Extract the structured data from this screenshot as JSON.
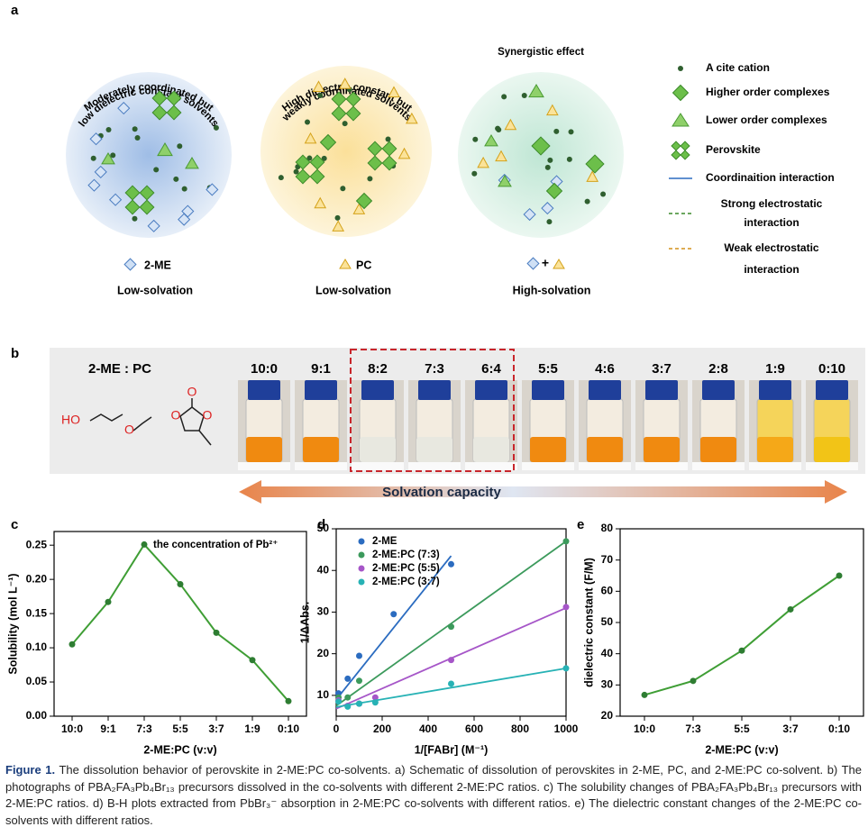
{
  "panel_a": {
    "label": "a",
    "circles": [
      {
        "title_lines": [
          "Moderately coordinated but",
          "low dielectric constant solvents"
        ],
        "solvent_label": "2-ME",
        "solvation": "Low-solvation"
      },
      {
        "title_lines": [
          "High dielectric constant but",
          "weakly coordinated solvents"
        ],
        "solvent_label": "PC",
        "solvation": "Low-solvation"
      },
      {
        "title_lines": [
          "Synergistic effect"
        ],
        "solvent_label": "+",
        "solvation": "High-solvation"
      }
    ],
    "legend": [
      {
        "lines": [
          "A cite cation"
        ]
      },
      {
        "lines": [
          "Higher order complexes"
        ]
      },
      {
        "lines": [
          "Lower order complexes"
        ]
      },
      {
        "lines": [
          "Perovskite"
        ]
      },
      {
        "lines": [
          "Coordinaition interaction"
        ]
      },
      {
        "lines": [
          "Strong electrostatic",
          "interaction"
        ]
      },
      {
        "lines": [
          "Weak electrostatic",
          "interaction"
        ]
      }
    ]
  },
  "panel_b": {
    "label": "b",
    "ratio_title": "2-ME : PC",
    "ratios": [
      "10:0",
      "9:1",
      "8:2",
      "7:3",
      "6:4",
      "5:5",
      "4:6",
      "3:7",
      "2:8",
      "1:9",
      "0:10"
    ],
    "molecule_2me": [
      "HO",
      "O"
    ],
    "molecule_pc": [
      "O",
      "O",
      "O"
    ],
    "arrow_label": "Solvation capacity"
  },
  "chart_data": [
    {
      "type": "line",
      "label": "c",
      "categories": [
        "10:0",
        "9:1",
        "7:3",
        "5:5",
        "3:7",
        "1:9",
        "0:10"
      ],
      "values": [
        0.105,
        0.167,
        0.251,
        0.193,
        0.122,
        0.082,
        0.022
      ],
      "color": "#3f9e35",
      "marker_color": "#2e7d32",
      "ylim": [
        0,
        0.27
      ],
      "yticks": [
        {
          "value": 0,
          "label": "0.00"
        },
        {
          "value": 0.05,
          "label": "0.05"
        },
        {
          "value": 0.1,
          "label": "0.10"
        },
        {
          "value": 0.15,
          "label": "0.15"
        },
        {
          "value": 0.2,
          "label": "0.20"
        },
        {
          "value": 0.25,
          "label": "0.25"
        }
      ],
      "ylabel": "Solubility (mol L⁻¹)",
      "xlabel": "2-ME:PC (v:v)",
      "annotation": "the concentration of Pb²⁺"
    },
    {
      "type": "scatter",
      "label": "d",
      "xlim": [
        0,
        1000
      ],
      "xticks": [
        0,
        200,
        400,
        600,
        800,
        1000
      ],
      "ylim": [
        5,
        50
      ],
      "yticks": [
        10,
        20,
        30,
        40,
        50
      ],
      "ylabel": "1/ΔAbs.",
      "xlabel": "1/[FABr] (M⁻¹)",
      "legend": "upper left",
      "series": [
        {
          "name": "2-ME",
          "color": "#2b6cc0",
          "x": [
            10,
            50,
            100,
            250,
            500
          ],
          "values": [
            10.5,
            14,
            19.5,
            29.5,
            41.5
          ],
          "fit_x": [
            0,
            500
          ],
          "fit_values": [
            9,
            43.5
          ]
        },
        {
          "name": "2-ME:PC (7:3)",
          "color": "#3c9a5c",
          "x": [
            10,
            50,
            100,
            500,
            1000
          ],
          "values": [
            9.5,
            9.5,
            13.5,
            26.5,
            47
          ],
          "fit_x": [
            0,
            1000
          ],
          "fit_values": [
            7.5,
            47
          ]
        },
        {
          "name": "2-ME:PC (5:5)",
          "color": "#a656c8",
          "x": [
            10,
            50,
            100,
            170,
            500,
            1000
          ],
          "values": [
            8.8,
            7.5,
            8,
            9.5,
            18.5,
            31.2
          ],
          "fit_x": [
            0,
            1000
          ],
          "fit_values": [
            6.8,
            31
          ]
        },
        {
          "name": "2-ME:PC (3:7)",
          "color": "#27b2b5",
          "x": [
            10,
            50,
            100,
            170,
            500,
            1000
          ],
          "values": [
            8.5,
            7.3,
            8,
            8.3,
            12.8,
            16.5
          ],
          "fit_x": [
            0,
            1000
          ],
          "fit_values": [
            7.2,
            16.5
          ]
        }
      ]
    },
    {
      "type": "line",
      "label": "e",
      "categories": [
        "10:0",
        "7:3",
        "5:5",
        "3:7",
        "0:10"
      ],
      "values": [
        26.8,
        31.3,
        41,
        54.2,
        65
      ],
      "color": "#3f9e35",
      "marker_color": "#2e7d32",
      "ylim": [
        20,
        80
      ],
      "yticks": [
        20,
        30,
        40,
        50,
        60,
        70,
        80
      ],
      "ylabel": "dielectric constant (F/M)",
      "xlabel": "2-ME:PC (v:v)"
    }
  ],
  "caption": {
    "label": "Figure 1.",
    "text": "The dissolution behavior of perovskite in 2-ME:PC co-solvents. a) Schematic of dissolution of perovskites in 2-ME, PC, and 2-ME:PC co-solvent. b) The photographs of PBA₂FA₃Pb₄Br₁₃ precursors dissolved in the co-solvents with different 2-ME:PC ratios. c) The solubility changes of PBA₂FA₃Pb₄Br₁₃ precursors with 2-ME:PC ratios. d) B-H plots extracted from PbBr₃⁻ absorption in 2-ME:PC co-solvents with different ratios. e) The dielectric constant changes of the 2-ME:PC co-solvents with different ratios."
  }
}
